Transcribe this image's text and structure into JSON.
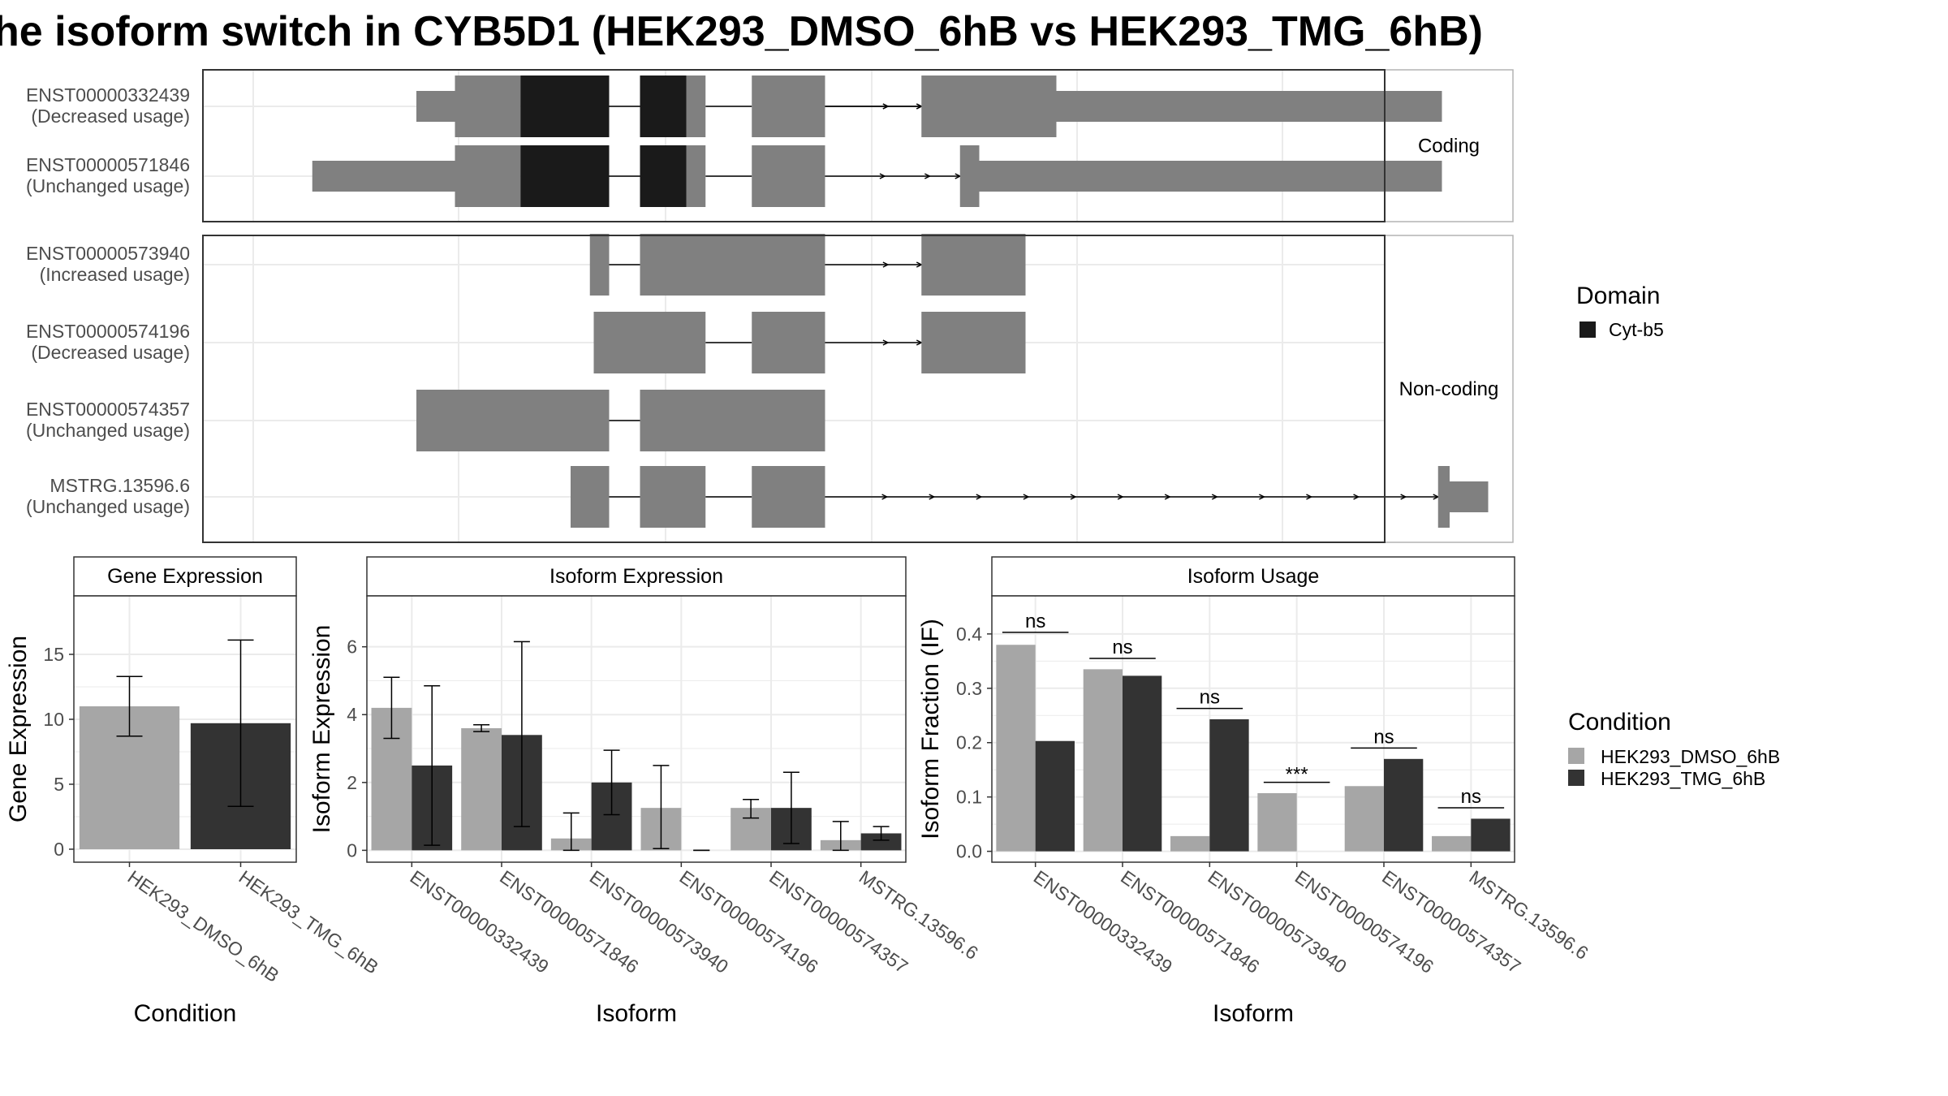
{
  "title": "he isoform switch in CYB5D1 (HEK293_DMSO_6hB vs HEK293_TMG_6hB)",
  "colors": {
    "exon": "#808080",
    "domain": "#1a1a1a",
    "dmso": "#a6a6a6",
    "tmg": "#333333",
    "grid": "#ebebeb",
    "strip": "#ffffff"
  },
  "structure": {
    "panels": [
      {
        "label": "Coding",
        "rows": [
          0,
          1
        ]
      },
      {
        "label": "Non-coding",
        "rows": [
          2,
          3,
          4,
          5
        ]
      }
    ],
    "isoforms": [
      {
        "name": "ENST00000332439",
        "usage": "(Decreased usage)",
        "exons": [
          [
            -60,
            -10,
            "s"
          ],
          [
            -10,
            40,
            "t"
          ],
          [
            40,
            75,
            "t"
          ],
          [
            75,
            190,
            "d"
          ],
          [
            230,
            290,
            "d"
          ],
          [
            290,
            315,
            "t"
          ],
          [
            375,
            470,
            "t"
          ],
          [
            595,
            770,
            "t"
          ],
          [
            770,
            1270,
            "m"
          ]
        ],
        "introns": [
          [
            190,
            230
          ],
          [
            315,
            375
          ],
          [
            470,
            595,
            0
          ],
          [
            595,
            595
          ],
          [
            470,
            595
          ]
        ]
      },
      {
        "name": "ENST00000571846",
        "usage": "(Unchanged usage)",
        "exons": [
          [
            -195,
            -10,
            "s"
          ],
          [
            -10,
            40,
            "t"
          ],
          [
            40,
            75,
            "t"
          ],
          [
            75,
            190,
            "d"
          ],
          [
            230,
            290,
            "d"
          ],
          [
            290,
            315,
            "t"
          ],
          [
            375,
            470,
            "t"
          ],
          [
            645,
            670,
            "t"
          ],
          [
            670,
            1270,
            "m"
          ]
        ],
        "introns": [
          [
            190,
            230
          ],
          [
            315,
            375
          ],
          [
            470,
            645
          ]
        ]
      },
      {
        "name": "ENST00000573940",
        "usage": "(Increased usage)",
        "exons": [
          [
            165,
            190,
            "t"
          ],
          [
            230,
            470,
            "t"
          ],
          [
            595,
            730,
            "t"
          ]
        ],
        "introns": [
          [
            190,
            230
          ],
          [
            470,
            595
          ]
        ]
      },
      {
        "name": "ENST00000574196",
        "usage": "(Decreased usage)",
        "exons": [
          [
            170,
            315,
            "t"
          ],
          [
            375,
            470,
            "t"
          ],
          [
            595,
            730,
            "t"
          ]
        ],
        "introns": [
          [
            315,
            375
          ],
          [
            470,
            595
          ]
        ]
      },
      {
        "name": "ENST00000574357",
        "usage": "(Unchanged usage)",
        "exons": [
          [
            -60,
            190,
            "t"
          ],
          [
            230,
            470,
            "t"
          ]
        ],
        "introns": [
          [
            190,
            230
          ]
        ]
      },
      {
        "name": "MSTRG.13596.6",
        "usage": "(Unchanged usage)",
        "exons": [
          [
            140,
            190,
            "t"
          ],
          [
            230,
            315,
            "t"
          ],
          [
            375,
            470,
            "t"
          ],
          [
            1265,
            1280,
            "t"
          ],
          [
            1280,
            1330,
            "s"
          ]
        ],
        "introns": [
          [
            190,
            230
          ],
          [
            315,
            375
          ],
          [
            470,
            1265
          ]
        ]
      }
    ],
    "legend_title": "Domain",
    "legend_item": "Cyt-b5"
  },
  "gene_expression": {
    "strip": "Gene Expression",
    "xlabel": "Condition",
    "ylabel": "Gene Expression",
    "yticks": [
      0,
      5,
      10,
      15
    ],
    "ylim": [
      -1,
      19.5
    ],
    "categories": [
      "HEK293_DMSO_6hB",
      "HEK293_TMG_6hB"
    ],
    "values": [
      11.0,
      9.7
    ],
    "errors": [
      [
        8.7,
        13.3
      ],
      [
        3.3,
        16.1
      ]
    ]
  },
  "isoform_expression": {
    "strip": "Isoform Expression",
    "xlabel": "Isoform",
    "ylabel": "Isoform Expression",
    "yticks": [
      0,
      2,
      4,
      6
    ],
    "ylim": [
      -0.35,
      7.5
    ],
    "categories": [
      "ENST00000332439",
      "ENST00000571846",
      "ENST00000573940",
      "ENST00000574196",
      "ENST00000574357",
      "MSTRG.13596.6"
    ],
    "series": [
      {
        "name": "HEK293_DMSO_6hB",
        "values": [
          4.2,
          3.6,
          0.35,
          1.25,
          1.25,
          0.3
        ],
        "errors": [
          [
            3.3,
            5.1
          ],
          [
            3.5,
            3.7
          ],
          [
            0,
            1.1
          ],
          [
            0.05,
            2.5
          ],
          [
            0.95,
            1.5
          ],
          [
            0,
            0.85
          ]
        ]
      },
      {
        "name": "HEK293_TMG_6hB",
        "values": [
          2.5,
          3.4,
          2.0,
          0.0,
          1.25,
          0.5
        ],
        "errors": [
          [
            0.15,
            4.85
          ],
          [
            0.7,
            6.15
          ],
          [
            1.05,
            2.95
          ],
          [
            0,
            0
          ],
          [
            0.2,
            2.3
          ],
          [
            0.3,
            0.7
          ]
        ]
      }
    ]
  },
  "isoform_usage": {
    "strip": "Isoform Usage",
    "xlabel": "Isoform",
    "ylabel": "Isoform Fraction (IF)",
    "yticks": [
      "0.0",
      "0.1",
      "0.2",
      "0.3",
      "0.4"
    ],
    "ylim": [
      -0.02,
      0.47
    ],
    "categories": [
      "ENST00000332439",
      "ENST00000571846",
      "ENST00000573940",
      "ENST00000574196",
      "ENST00000574357",
      "MSTRG.13596.6"
    ],
    "series": [
      {
        "name": "HEK293_DMSO_6hB",
        "values": [
          0.38,
          0.335,
          0.028,
          0.107,
          0.12,
          0.028
        ]
      },
      {
        "name": "HEK293_TMG_6hB",
        "values": [
          0.203,
          0.323,
          0.243,
          0.0,
          0.17,
          0.06
        ]
      }
    ],
    "significance": [
      "ns",
      "ns",
      "ns",
      "***",
      "ns",
      "ns"
    ],
    "sig_heights": [
      0.403,
      0.355,
      0.263,
      0.127,
      0.19,
      0.08
    ]
  },
  "condition_legend": {
    "title": "Condition",
    "items": [
      "HEK293_DMSO_6hB",
      "HEK293_TMG_6hB"
    ]
  }
}
